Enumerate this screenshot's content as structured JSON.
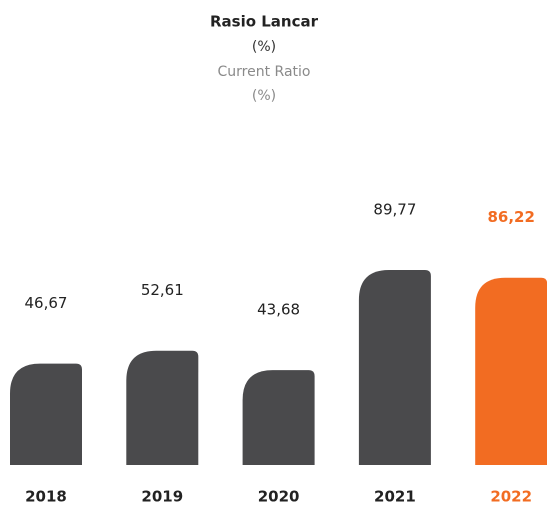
{
  "chart_data": {
    "type": "bar",
    "title": "Rasio Lancar",
    "unit": "(%)",
    "subtitle": "Current Ratio",
    "subtitle_unit": "(%)",
    "categories": [
      "2018",
      "2019",
      "2020",
      "2021",
      "2022"
    ],
    "values": [
      46.67,
      52.61,
      43.68,
      89.77,
      86.22
    ],
    "value_labels": [
      "46,67",
      "52,61",
      "43,68",
      "89,77",
      "86,22"
    ],
    "colors": [
      "#4a4a4c",
      "#4a4a4c",
      "#4a4a4c",
      "#4a4a4c",
      "#f26c22"
    ],
    "highlight_color": "#f26c22"
  }
}
